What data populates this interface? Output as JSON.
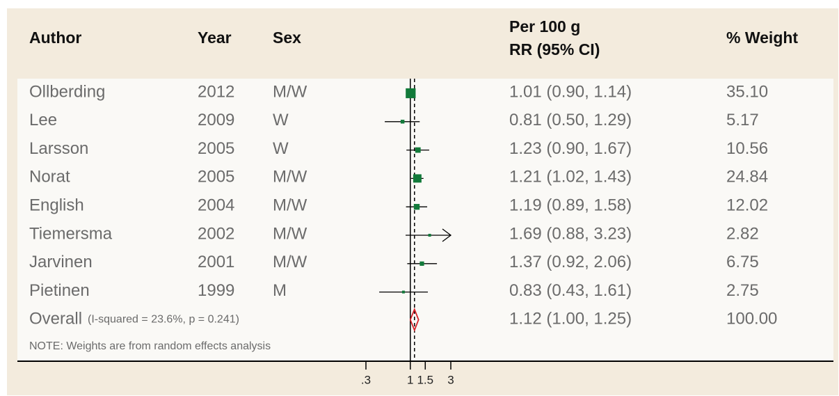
{
  "chart_data": {
    "type": "forest",
    "columns": {
      "author": "Author",
      "year": "Year",
      "sex": "Sex",
      "rr": [
        "Per 100 g",
        "RR (95% CI)"
      ],
      "weight": "% Weight"
    },
    "studies": [
      {
        "author": "Ollberding",
        "year": "2012",
        "sex": "M/W",
        "rr": 1.01,
        "lower": 0.9,
        "upper": 1.14,
        "ci_label": "1.01 (0.90, 1.14)",
        "weight": 35.1,
        "weight_label": "35.10"
      },
      {
        "author": "Lee",
        "year": "2009",
        "sex": "W",
        "rr": 0.81,
        "lower": 0.5,
        "upper": 1.29,
        "ci_label": "0.81 (0.50, 1.29)",
        "weight": 5.17,
        "weight_label": "5.17"
      },
      {
        "author": "Larsson",
        "year": "2005",
        "sex": "W",
        "rr": 1.23,
        "lower": 0.9,
        "upper": 1.67,
        "ci_label": "1.23 (0.90, 1.67)",
        "weight": 10.56,
        "weight_label": "10.56"
      },
      {
        "author": "Norat",
        "year": "2005",
        "sex": "M/W",
        "rr": 1.21,
        "lower": 1.02,
        "upper": 1.43,
        "ci_label": "1.21 (1.02, 1.43)",
        "weight": 24.84,
        "weight_label": "24.84"
      },
      {
        "author": "English",
        "year": "2004",
        "sex": "M/W",
        "rr": 1.19,
        "lower": 0.89,
        "upper": 1.58,
        "ci_label": "1.19 (0.89, 1.58)",
        "weight": 12.02,
        "weight_label": "12.02"
      },
      {
        "author": "Tiemersma",
        "year": "2002",
        "sex": "M/W",
        "rr": 1.69,
        "lower": 0.88,
        "upper": 3.23,
        "ci_label": "1.69 (0.88, 3.23)",
        "weight": 2.82,
        "weight_label": "2.82"
      },
      {
        "author": "Jarvinen",
        "year": "2001",
        "sex": "M/W",
        "rr": 1.37,
        "lower": 0.92,
        "upper": 2.06,
        "ci_label": "1.37 (0.92, 2.06)",
        "weight": 6.75,
        "weight_label": "6.75"
      },
      {
        "author": "Pietinen",
        "year": "1999",
        "sex": "M",
        "rr": 0.83,
        "lower": 0.43,
        "upper": 1.61,
        "ci_label": "0.83 (0.43, 1.61)",
        "weight": 2.75,
        "weight_label": "2.75"
      }
    ],
    "overall": {
      "label": "Overall",
      "stats": "(I-squared = 23.6%, p = 0.241)",
      "rr": 1.12,
      "lower": 1.0,
      "upper": 1.25,
      "ci_label": "1.12 (1.00, 1.25)",
      "weight": 100,
      "weight_label": "100.00"
    },
    "note": "NOTE: Weights are from random effects analysis",
    "null_line": 1,
    "log_x": true,
    "xlim": [
      0.3,
      3
    ],
    "xticks": [
      {
        "value": 0.3,
        "label": ".3"
      },
      1,
      1.5,
      3
    ],
    "box_color": "#127a3a",
    "diamond_color": "#d8232a"
  }
}
